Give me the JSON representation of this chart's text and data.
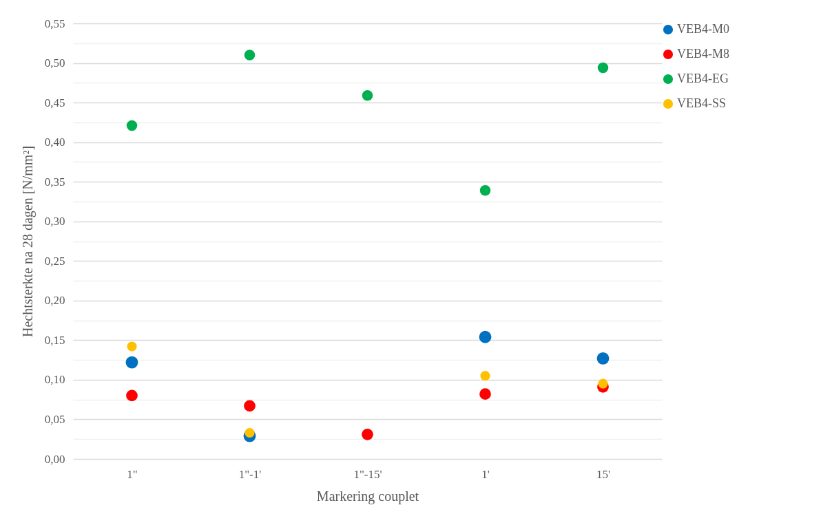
{
  "chart_data": {
    "type": "scatter",
    "xlabel": "Markering couplet",
    "ylabel": "Hechtsterkte na 28 dagen [N/mm²]",
    "categories": [
      "1\"",
      "1\"-1'",
      "1\"-15'",
      "1'",
      "15'"
    ],
    "series": [
      {
        "name": "VEB4-M0",
        "color": "#0070c0",
        "values": [
          0.122,
          0.029,
          null,
          0.154,
          0.127
        ]
      },
      {
        "name": "VEB4-M8",
        "color": "#ff0000",
        "values": [
          0.08,
          0.067,
          0.031,
          0.082,
          0.091
        ]
      },
      {
        "name": "VEB4-EG",
        "color": "#00b050",
        "values": [
          0.421,
          0.51,
          0.459,
          0.339,
          0.494
        ]
      },
      {
        "name": "VEB4-SS",
        "color": "#ffc000",
        "values": [
          0.142,
          0.033,
          null,
          0.105,
          0.095
        ]
      }
    ],
    "ylim": [
      0,
      0.55
    ],
    "yticks": [
      {
        "value": 0,
        "label": "0,00"
      },
      {
        "value": 0.025,
        "label": null
      },
      {
        "value": 0.05,
        "label": "0,05"
      },
      {
        "value": 0.075,
        "label": null
      },
      {
        "value": 0.1,
        "label": "0,10"
      },
      {
        "value": 0.125,
        "label": null
      },
      {
        "value": 0.15,
        "label": "0,15"
      },
      {
        "value": 0.175,
        "label": null
      },
      {
        "value": 0.2,
        "label": "0,20"
      },
      {
        "value": 0.225,
        "label": null
      },
      {
        "value": 0.25,
        "label": "0,25"
      },
      {
        "value": 0.275,
        "label": null
      },
      {
        "value": 0.3,
        "label": "0,30"
      },
      {
        "value": 0.325,
        "label": null
      },
      {
        "value": 0.35,
        "label": "0,35"
      },
      {
        "value": 0.375,
        "label": null
      },
      {
        "value": 0.4,
        "label": "0,40"
      },
      {
        "value": 0.425,
        "label": null
      },
      {
        "value": 0.45,
        "label": "0,45"
      },
      {
        "value": 0.475,
        "label": null
      },
      {
        "value": 0.5,
        "label": "0,50"
      },
      {
        "value": 0.525,
        "label": null
      },
      {
        "value": 0.55,
        "label": "0,55"
      }
    ],
    "grid": "y",
    "legend": "right",
    "marker": "circle"
  }
}
